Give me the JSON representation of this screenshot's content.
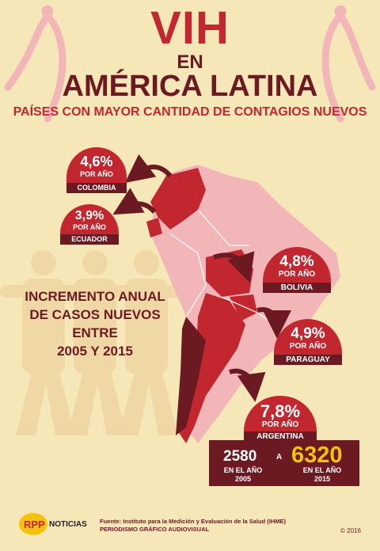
{
  "header": {
    "title_line1": "VIH",
    "title_line2": "EN",
    "title_line3": "AMÉRICA LATINA",
    "subtitle": "PAÍSES CON MAYOR CANTIDAD DE CONTAGIOS NUEVOS"
  },
  "countries": [
    {
      "percent": "4,6%",
      "per_year": "POR AÑO",
      "name": "COLOMBIA"
    },
    {
      "percent": "3,9%",
      "per_year": "POR AÑO",
      "name": "ECUADOR"
    },
    {
      "percent": "4,8%",
      "per_year": "POR AÑO",
      "name": "BOLIVIA"
    },
    {
      "percent": "4,9%",
      "per_year": "POR AÑO",
      "name": "PARAGUAY"
    },
    {
      "percent": "7,8%",
      "per_year": "POR AÑO",
      "name": "ARGENTINA"
    }
  ],
  "increment": {
    "line1": "INCREMENTO ANUAL",
    "line2": "DE CASOS NUEVOS",
    "line3": "ENTRE",
    "line4": "2005 Y 2015"
  },
  "argentina_stats": {
    "from_value": "2580",
    "from_label1": "EN EL AÑO",
    "from_label2": "2005",
    "connector": "A",
    "to_value": "6320",
    "to_label1": "EN EL AÑO",
    "to_label2": "2015"
  },
  "footer": {
    "logo": "RPP",
    "brand": "NOTICIAS",
    "source_line1": "Fuente: Instituto para la Medición y Evaluación de la Salud (IHME)",
    "source_line2": "PERIODISMO GRÁFICO AUDIOVISUAL",
    "copyright": "© 2016"
  },
  "colors": {
    "background": "#f6e7b8",
    "red": "#c2262e",
    "dark_red": "#6b1a22",
    "pink": "#f2b6b9",
    "yellow": "#f4c20d"
  }
}
